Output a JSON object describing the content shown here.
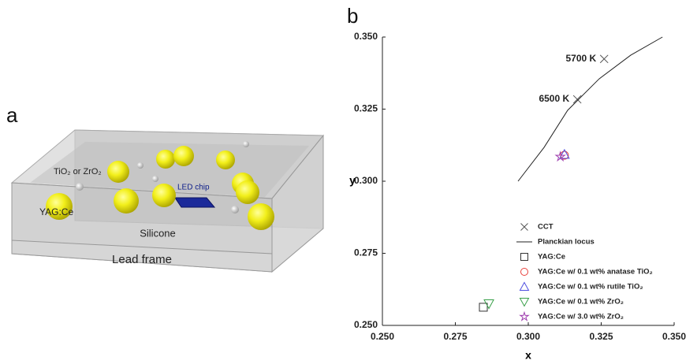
{
  "diagram": {
    "panel_label": "a",
    "labels": {
      "particles": "TiO₂ or ZrO₂",
      "phosphor": "YAG:Ce",
      "chip": "LED chip",
      "encapsulant": "Silicone",
      "frame": "Lead frame"
    }
  },
  "chart_data": {
    "type": "scatter",
    "panel_label": "b",
    "xlabel": "x",
    "ylabel": "y",
    "xlim": [
      0.25,
      0.35
    ],
    "ylim": [
      0.25,
      0.35
    ],
    "xticks": [
      {
        "value": 0.25,
        "label": "0.250"
      },
      {
        "value": 0.275,
        "label": "0.275"
      },
      {
        "value": 0.3,
        "label": "0.300"
      },
      {
        "value": 0.325,
        "label": "0.325"
      },
      {
        "value": 0.35,
        "label": "0.350"
      }
    ],
    "yticks": [
      {
        "value": 0.25,
        "label": "0.250"
      },
      {
        "value": 0.275,
        "label": "0.275"
      },
      {
        "value": 0.3,
        "label": "0.300"
      },
      {
        "value": 0.325,
        "label": "0.325"
      },
      {
        "value": 0.35,
        "label": "0.350"
      }
    ],
    "legend": "lower right",
    "series": [
      {
        "name": "CCT",
        "color": "#555555",
        "marker": "x",
        "x": [
          0.326,
          0.3168
        ],
        "y": [
          0.3424,
          0.3284
        ],
        "labels": [
          "5700 K",
          "6500 K"
        ]
      },
      {
        "name": "Planckian locus",
        "color": "#222222",
        "marker": "line",
        "x": [
          0.2965,
          0.3054,
          0.3135,
          0.3243,
          0.3351,
          0.346
        ],
        "y": [
          0.3,
          0.3117,
          0.3246,
          0.3355,
          0.3437,
          0.35
        ]
      },
      {
        "name": "YAG:Ce",
        "color": "#333333",
        "marker": "square",
        "x": [
          0.2846
        ],
        "y": [
          0.2563
        ]
      },
      {
        "name": "YAG:Ce w/ 0.1 wt% anatase TiO₂",
        "color": "#e8413c",
        "marker": "circle",
        "x": [
          0.3124
        ],
        "y": [
          0.309
        ]
      },
      {
        "name": "YAG:Ce w/ 0.1 wt% rutile TiO₂",
        "color": "#5050e0",
        "marker": "triangle",
        "x": [
          0.3124
        ],
        "y": [
          0.3093
        ]
      },
      {
        "name": "YAG:Ce w/ 0.1 wt% ZrO₂",
        "color": "#3aa04a",
        "marker": "triangle_down",
        "x": [
          0.2865
        ],
        "y": [
          0.2575
        ]
      },
      {
        "name": "YAG:Ce w/ 3.0 wt% ZrO₂",
        "color": "#a040b0",
        "marker": "star",
        "x": [
          0.311
        ],
        "y": [
          0.3085
        ]
      }
    ]
  }
}
